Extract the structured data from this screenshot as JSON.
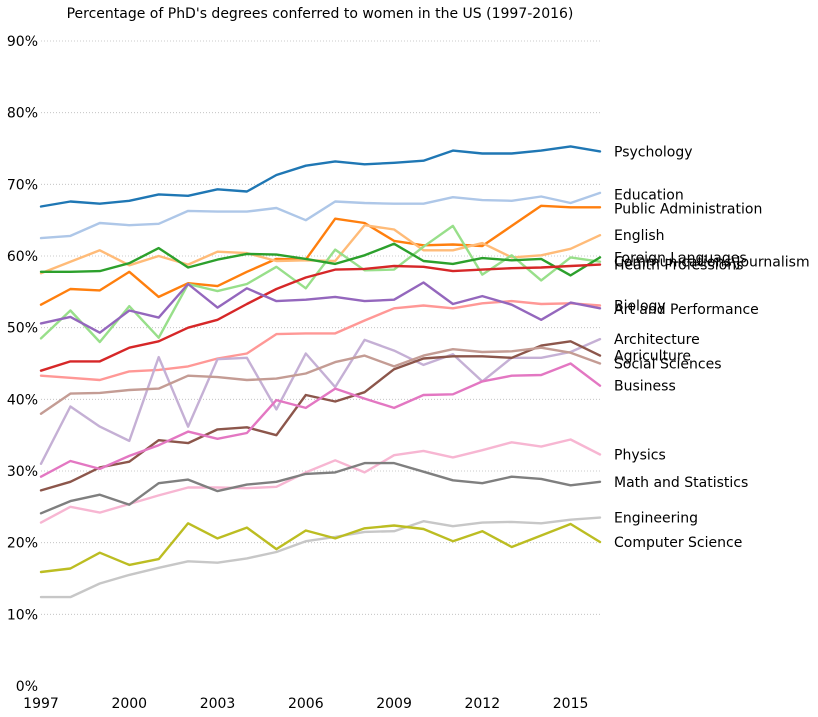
{
  "chart_data": {
    "type": "line",
    "title": "Percentage of PhD's degrees conferred to women in the US (1997-2016)",
    "xlabel": "",
    "ylabel": "",
    "xlim": [
      1997,
      2016
    ],
    "ylim": [
      0,
      90
    ],
    "x_ticks": [
      1997,
      2000,
      2003,
      2006,
      2009,
      2012,
      2015
    ],
    "y_ticks": [
      0,
      10,
      20,
      30,
      40,
      50,
      60,
      70,
      80,
      90
    ],
    "y_tick_suffix": "%",
    "grid": "horizontal dotted",
    "legend": "direct labels at right end of lines",
    "x": [
      1997,
      1998,
      1999,
      2000,
      2001,
      2002,
      2003,
      2004,
      2005,
      2006,
      2007,
      2008,
      2009,
      2010,
      2011,
      2012,
      2013,
      2014,
      2015,
      2016
    ],
    "series": [
      {
        "name": "Psychology",
        "color": "#1f77b4",
        "label_y": 74.6,
        "values": [
          66.9,
          67.6,
          67.3,
          67.7,
          68.6,
          68.4,
          69.3,
          69.0,
          71.3,
          72.6,
          73.2,
          72.8,
          73.0,
          73.3,
          74.7,
          74.3,
          74.3,
          74.7,
          75.3,
          74.6
        ]
      },
      {
        "name": "Education",
        "color": "#aec7e8",
        "label_y": 68.6,
        "values": [
          62.5,
          62.8,
          64.6,
          64.3,
          64.5,
          66.3,
          66.2,
          66.2,
          66.7,
          65.0,
          67.6,
          67.4,
          67.3,
          67.3,
          68.2,
          67.8,
          67.7,
          68.3,
          67.4,
          68.8
        ]
      },
      {
        "name": "Public Administration",
        "color": "#ff7f0e",
        "label_y": 66.6,
        "values": [
          53.2,
          55.4,
          55.2,
          57.8,
          54.3,
          56.2,
          55.8,
          57.8,
          59.6,
          59.5,
          65.2,
          64.6,
          62.1,
          61.5,
          61.6,
          61.4,
          64.2,
          67.0,
          66.8,
          66.8
        ]
      },
      {
        "name": "English",
        "color": "#ffbb78",
        "label_y": 62.9,
        "values": [
          57.6,
          59.2,
          60.8,
          58.7,
          60.0,
          58.8,
          60.6,
          60.4,
          59.3,
          59.4,
          59.3,
          64.3,
          63.7,
          60.8,
          60.8,
          61.8,
          59.8,
          60.1,
          61.0,
          62.9
        ]
      },
      {
        "name": "Foreign Languages",
        "color": "#98df8a",
        "label_y": 59.8,
        "values": [
          48.5,
          52.4,
          48.0,
          53.0,
          48.6,
          56.1,
          55.1,
          56.1,
          58.5,
          55.5,
          60.9,
          58.0,
          58.1,
          61.3,
          64.2,
          57.4,
          60.1,
          56.6,
          59.8,
          59.2
        ]
      },
      {
        "name": "Communications\\Journalism",
        "color": "#2ca02c",
        "label_y": 59.2,
        "values": [
          57.8,
          57.8,
          57.9,
          59.0,
          61.1,
          58.4,
          59.5,
          60.3,
          60.2,
          59.6,
          58.9,
          60.1,
          61.7,
          59.3,
          58.9,
          59.7,
          59.4,
          59.6,
          57.3,
          59.8
        ]
      },
      {
        "name": "Health Professions",
        "color": "#d62728",
        "label_y": 58.8,
        "values": [
          44.0,
          45.3,
          45.3,
          47.2,
          48.1,
          50.0,
          51.1,
          53.3,
          55.4,
          57.0,
          58.1,
          58.2,
          58.6,
          58.5,
          57.9,
          58.1,
          58.3,
          58.4,
          58.6,
          58.8
        ]
      },
      {
        "name": "Biology",
        "color": "#ff9896",
        "label_y": 53.1,
        "values": [
          43.3,
          43.0,
          42.7,
          43.9,
          44.1,
          44.6,
          45.7,
          46.4,
          49.1,
          49.2,
          49.2,
          51.0,
          52.7,
          53.1,
          52.7,
          53.4,
          53.7,
          53.3,
          53.4,
          53.1
        ]
      },
      {
        "name": "Art and Performance",
        "color": "#9467bd",
        "label_y": 52.6,
        "values": [
          50.6,
          51.5,
          49.3,
          52.4,
          51.4,
          56.1,
          52.8,
          55.5,
          53.7,
          53.9,
          54.3,
          53.7,
          53.9,
          56.3,
          53.3,
          54.4,
          53.2,
          51.1,
          53.5,
          52.7
        ]
      },
      {
        "name": "Architecture",
        "color": "#c5b0d5",
        "label_y": 48.4,
        "values": [
          31.0,
          39.0,
          36.2,
          34.2,
          45.9,
          36.2,
          45.6,
          45.8,
          38.6,
          46.4,
          41.7,
          48.3,
          46.8,
          44.8,
          46.3,
          42.5,
          45.8,
          45.8,
          46.6,
          48.4
        ]
      },
      {
        "name": "Agriculture",
        "color": "#8c564b",
        "label_y": 46.1,
        "values": [
          27.3,
          28.5,
          30.5,
          31.3,
          34.3,
          33.9,
          35.8,
          36.1,
          35.0,
          40.6,
          39.7,
          41.0,
          44.2,
          45.7,
          46.0,
          46.0,
          45.8,
          47.5,
          48.1,
          46.1
        ]
      },
      {
        "name": "Social Sciences",
        "color": "#c49c94",
        "label_y": 45.0,
        "values": [
          38.0,
          40.8,
          40.9,
          41.3,
          41.5,
          43.3,
          43.1,
          42.7,
          42.9,
          43.6,
          45.2,
          46.1,
          44.6,
          46.1,
          47.0,
          46.6,
          46.7,
          47.2,
          46.5,
          45.0
        ]
      },
      {
        "name": "Business",
        "color": "#e377c2",
        "label_y": 41.9,
        "values": [
          29.2,
          31.4,
          30.3,
          32.1,
          33.6,
          35.5,
          34.5,
          35.3,
          39.9,
          38.8,
          41.5,
          40.1,
          38.8,
          40.6,
          40.7,
          42.5,
          43.3,
          43.4,
          45.0,
          41.9
        ]
      },
      {
        "name": "Physics",
        "color": "#f7b6d2",
        "label_y": 32.3,
        "values": [
          22.8,
          25.0,
          24.2,
          25.4,
          26.6,
          27.7,
          27.7,
          27.6,
          27.8,
          29.8,
          31.5,
          29.8,
          32.2,
          32.8,
          31.9,
          32.9,
          34.0,
          33.4,
          34.4,
          32.3
        ]
      },
      {
        "name": "Math and Statistics",
        "color": "#7f7f7f",
        "label_y": 28.5,
        "values": [
          24.1,
          25.8,
          26.7,
          25.3,
          28.3,
          28.8,
          27.2,
          28.1,
          28.5,
          29.6,
          29.8,
          31.1,
          31.1,
          29.9,
          28.7,
          28.3,
          29.2,
          28.9,
          28.0,
          28.5
        ]
      },
      {
        "name": "Engineering",
        "color": "#c7c7c7",
        "label_y": 23.5,
        "values": [
          12.4,
          12.4,
          14.3,
          15.5,
          16.5,
          17.4,
          17.2,
          17.8,
          18.7,
          20.2,
          20.8,
          21.5,
          21.6,
          23.0,
          22.3,
          22.8,
          22.9,
          22.7,
          23.2,
          23.5
        ]
      },
      {
        "name": "Computer Science",
        "color": "#bcbd22",
        "label_y": 20.1,
        "values": [
          15.9,
          16.4,
          18.6,
          16.9,
          17.7,
          22.7,
          20.6,
          22.1,
          19.1,
          21.7,
          20.6,
          22.0,
          22.4,
          21.9,
          20.2,
          21.6,
          19.4,
          21.0,
          22.6,
          20.1
        ]
      }
    ]
  }
}
